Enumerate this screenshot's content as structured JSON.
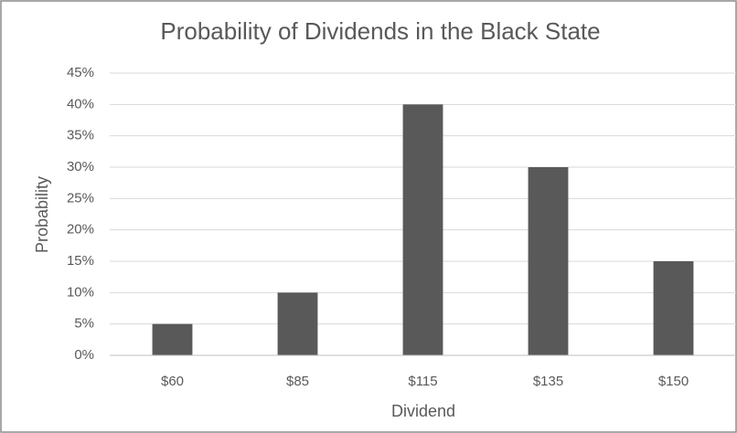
{
  "chart_data": {
    "type": "bar",
    "title": "Probability of Dividends in the Black State",
    "x_label": "Dividend",
    "y_label": "Probability",
    "categories": [
      "$60",
      "$85",
      "$115",
      "$135",
      "$150"
    ],
    "values": [
      5,
      10,
      40,
      30,
      15
    ],
    "color": "#595959",
    "ylim": [
      0,
      45
    ],
    "yticks": [
      {
        "value": 0,
        "label": "0%"
      },
      {
        "value": 5,
        "label": "5%"
      },
      {
        "value": 10,
        "label": "10%"
      },
      {
        "value": 15,
        "label": "15%"
      },
      {
        "value": 20,
        "label": "20%"
      },
      {
        "value": 25,
        "label": "25%"
      },
      {
        "value": 30,
        "label": "30%"
      },
      {
        "value": 35,
        "label": "35%"
      },
      {
        "value": 40,
        "label": "40%"
      },
      {
        "value": 45,
        "label": "45%"
      }
    ],
    "grid": true
  }
}
